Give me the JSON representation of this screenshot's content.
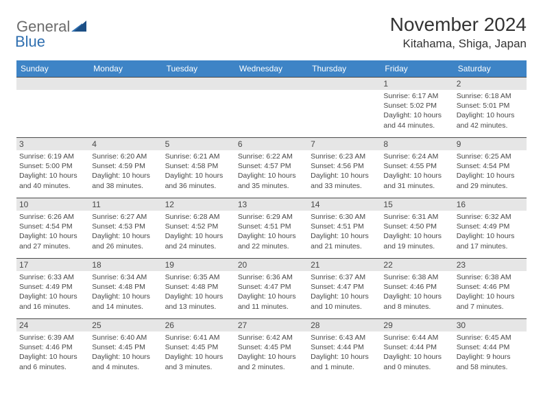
{
  "brand": {
    "general": "General",
    "blue": "Blue"
  },
  "title": "November 2024",
  "location": "Kitahama, Shiga, Japan",
  "colors": {
    "header_bg": "#3e84c6",
    "header_text": "#ffffff",
    "daynum_bg": "#e6e6e6",
    "text": "#474747",
    "rule": "#4a4a4a",
    "logo_gray": "#6b6b6b",
    "logo_blue": "#2f6fb0"
  },
  "day_headers": [
    "Sunday",
    "Monday",
    "Tuesday",
    "Wednesday",
    "Thursday",
    "Friday",
    "Saturday"
  ],
  "weeks": [
    [
      null,
      null,
      null,
      null,
      null,
      {
        "n": "1",
        "sunrise": "Sunrise: 6:17 AM",
        "sunset": "Sunset: 5:02 PM",
        "daylight": "Daylight: 10 hours and 44 minutes."
      },
      {
        "n": "2",
        "sunrise": "Sunrise: 6:18 AM",
        "sunset": "Sunset: 5:01 PM",
        "daylight": "Daylight: 10 hours and 42 minutes."
      }
    ],
    [
      {
        "n": "3",
        "sunrise": "Sunrise: 6:19 AM",
        "sunset": "Sunset: 5:00 PM",
        "daylight": "Daylight: 10 hours and 40 minutes."
      },
      {
        "n": "4",
        "sunrise": "Sunrise: 6:20 AM",
        "sunset": "Sunset: 4:59 PM",
        "daylight": "Daylight: 10 hours and 38 minutes."
      },
      {
        "n": "5",
        "sunrise": "Sunrise: 6:21 AM",
        "sunset": "Sunset: 4:58 PM",
        "daylight": "Daylight: 10 hours and 36 minutes."
      },
      {
        "n": "6",
        "sunrise": "Sunrise: 6:22 AM",
        "sunset": "Sunset: 4:57 PM",
        "daylight": "Daylight: 10 hours and 35 minutes."
      },
      {
        "n": "7",
        "sunrise": "Sunrise: 6:23 AM",
        "sunset": "Sunset: 4:56 PM",
        "daylight": "Daylight: 10 hours and 33 minutes."
      },
      {
        "n": "8",
        "sunrise": "Sunrise: 6:24 AM",
        "sunset": "Sunset: 4:55 PM",
        "daylight": "Daylight: 10 hours and 31 minutes."
      },
      {
        "n": "9",
        "sunrise": "Sunrise: 6:25 AM",
        "sunset": "Sunset: 4:54 PM",
        "daylight": "Daylight: 10 hours and 29 minutes."
      }
    ],
    [
      {
        "n": "10",
        "sunrise": "Sunrise: 6:26 AM",
        "sunset": "Sunset: 4:54 PM",
        "daylight": "Daylight: 10 hours and 27 minutes."
      },
      {
        "n": "11",
        "sunrise": "Sunrise: 6:27 AM",
        "sunset": "Sunset: 4:53 PM",
        "daylight": "Daylight: 10 hours and 26 minutes."
      },
      {
        "n": "12",
        "sunrise": "Sunrise: 6:28 AM",
        "sunset": "Sunset: 4:52 PM",
        "daylight": "Daylight: 10 hours and 24 minutes."
      },
      {
        "n": "13",
        "sunrise": "Sunrise: 6:29 AM",
        "sunset": "Sunset: 4:51 PM",
        "daylight": "Daylight: 10 hours and 22 minutes."
      },
      {
        "n": "14",
        "sunrise": "Sunrise: 6:30 AM",
        "sunset": "Sunset: 4:51 PM",
        "daylight": "Daylight: 10 hours and 21 minutes."
      },
      {
        "n": "15",
        "sunrise": "Sunrise: 6:31 AM",
        "sunset": "Sunset: 4:50 PM",
        "daylight": "Daylight: 10 hours and 19 minutes."
      },
      {
        "n": "16",
        "sunrise": "Sunrise: 6:32 AM",
        "sunset": "Sunset: 4:49 PM",
        "daylight": "Daylight: 10 hours and 17 minutes."
      }
    ],
    [
      {
        "n": "17",
        "sunrise": "Sunrise: 6:33 AM",
        "sunset": "Sunset: 4:49 PM",
        "daylight": "Daylight: 10 hours and 16 minutes."
      },
      {
        "n": "18",
        "sunrise": "Sunrise: 6:34 AM",
        "sunset": "Sunset: 4:48 PM",
        "daylight": "Daylight: 10 hours and 14 minutes."
      },
      {
        "n": "19",
        "sunrise": "Sunrise: 6:35 AM",
        "sunset": "Sunset: 4:48 PM",
        "daylight": "Daylight: 10 hours and 13 minutes."
      },
      {
        "n": "20",
        "sunrise": "Sunrise: 6:36 AM",
        "sunset": "Sunset: 4:47 PM",
        "daylight": "Daylight: 10 hours and 11 minutes."
      },
      {
        "n": "21",
        "sunrise": "Sunrise: 6:37 AM",
        "sunset": "Sunset: 4:47 PM",
        "daylight": "Daylight: 10 hours and 10 minutes."
      },
      {
        "n": "22",
        "sunrise": "Sunrise: 6:38 AM",
        "sunset": "Sunset: 4:46 PM",
        "daylight": "Daylight: 10 hours and 8 minutes."
      },
      {
        "n": "23",
        "sunrise": "Sunrise: 6:38 AM",
        "sunset": "Sunset: 4:46 PM",
        "daylight": "Daylight: 10 hours and 7 minutes."
      }
    ],
    [
      {
        "n": "24",
        "sunrise": "Sunrise: 6:39 AM",
        "sunset": "Sunset: 4:46 PM",
        "daylight": "Daylight: 10 hours and 6 minutes."
      },
      {
        "n": "25",
        "sunrise": "Sunrise: 6:40 AM",
        "sunset": "Sunset: 4:45 PM",
        "daylight": "Daylight: 10 hours and 4 minutes."
      },
      {
        "n": "26",
        "sunrise": "Sunrise: 6:41 AM",
        "sunset": "Sunset: 4:45 PM",
        "daylight": "Daylight: 10 hours and 3 minutes."
      },
      {
        "n": "27",
        "sunrise": "Sunrise: 6:42 AM",
        "sunset": "Sunset: 4:45 PM",
        "daylight": "Daylight: 10 hours and 2 minutes."
      },
      {
        "n": "28",
        "sunrise": "Sunrise: 6:43 AM",
        "sunset": "Sunset: 4:44 PM",
        "daylight": "Daylight: 10 hours and 1 minute."
      },
      {
        "n": "29",
        "sunrise": "Sunrise: 6:44 AM",
        "sunset": "Sunset: 4:44 PM",
        "daylight": "Daylight: 10 hours and 0 minutes."
      },
      {
        "n": "30",
        "sunrise": "Sunrise: 6:45 AM",
        "sunset": "Sunset: 4:44 PM",
        "daylight": "Daylight: 9 hours and 58 minutes."
      }
    ]
  ]
}
